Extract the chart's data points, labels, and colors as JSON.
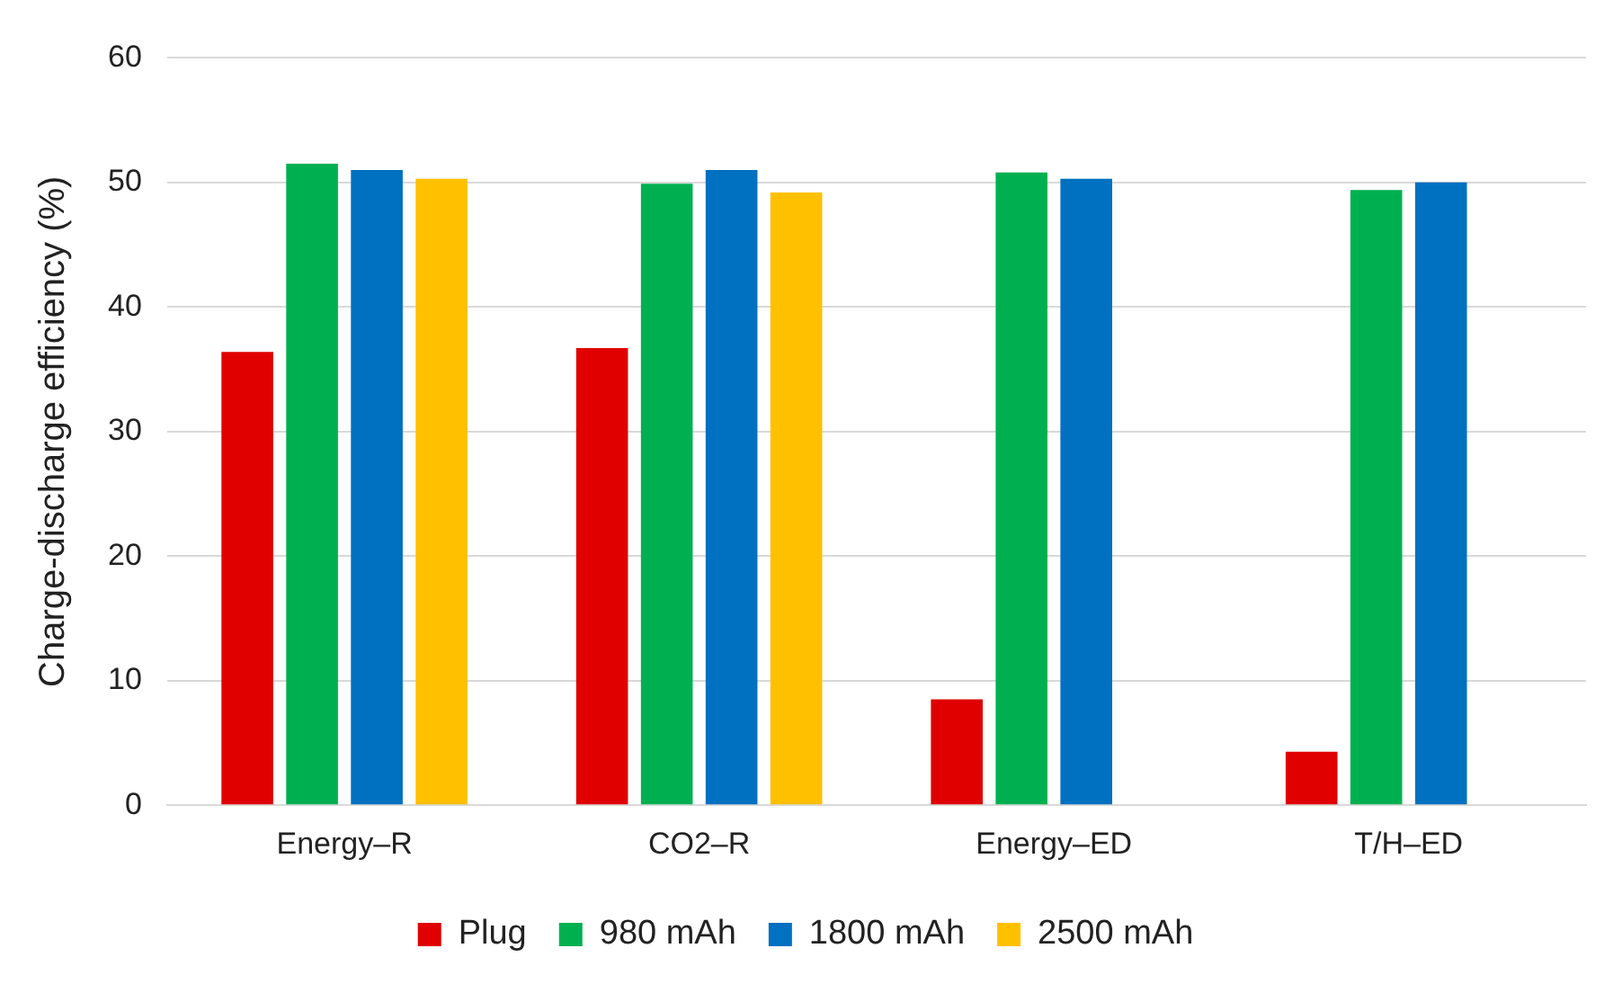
{
  "chart_data": {
    "type": "bar",
    "ylabel": "Charge-discharge efficiency (%)",
    "categories": [
      "Energy–R",
      "CO2–R",
      "Energy–ED",
      "T/H–ED"
    ],
    "series": [
      {
        "name": "Plug",
        "color": "#e00000",
        "values": [
          36.4,
          36.7,
          8.5,
          4.3
        ]
      },
      {
        "name": "980 mAh",
        "color": "#00b050",
        "values": [
          51.5,
          49.9,
          50.8,
          49.4
        ]
      },
      {
        "name": "1800 mAh",
        "color": "#0070c0",
        "values": [
          51.0,
          51.0,
          50.3,
          50.0
        ]
      },
      {
        "name": "2500 mAh",
        "color": "#ffc000",
        "values": [
          50.3,
          49.2,
          null,
          null
        ]
      }
    ],
    "ylim": [
      0,
      60
    ],
    "yticks": [
      0,
      10,
      20,
      30,
      40,
      50,
      60
    ],
    "grid": "y",
    "legend": "bottom"
  }
}
